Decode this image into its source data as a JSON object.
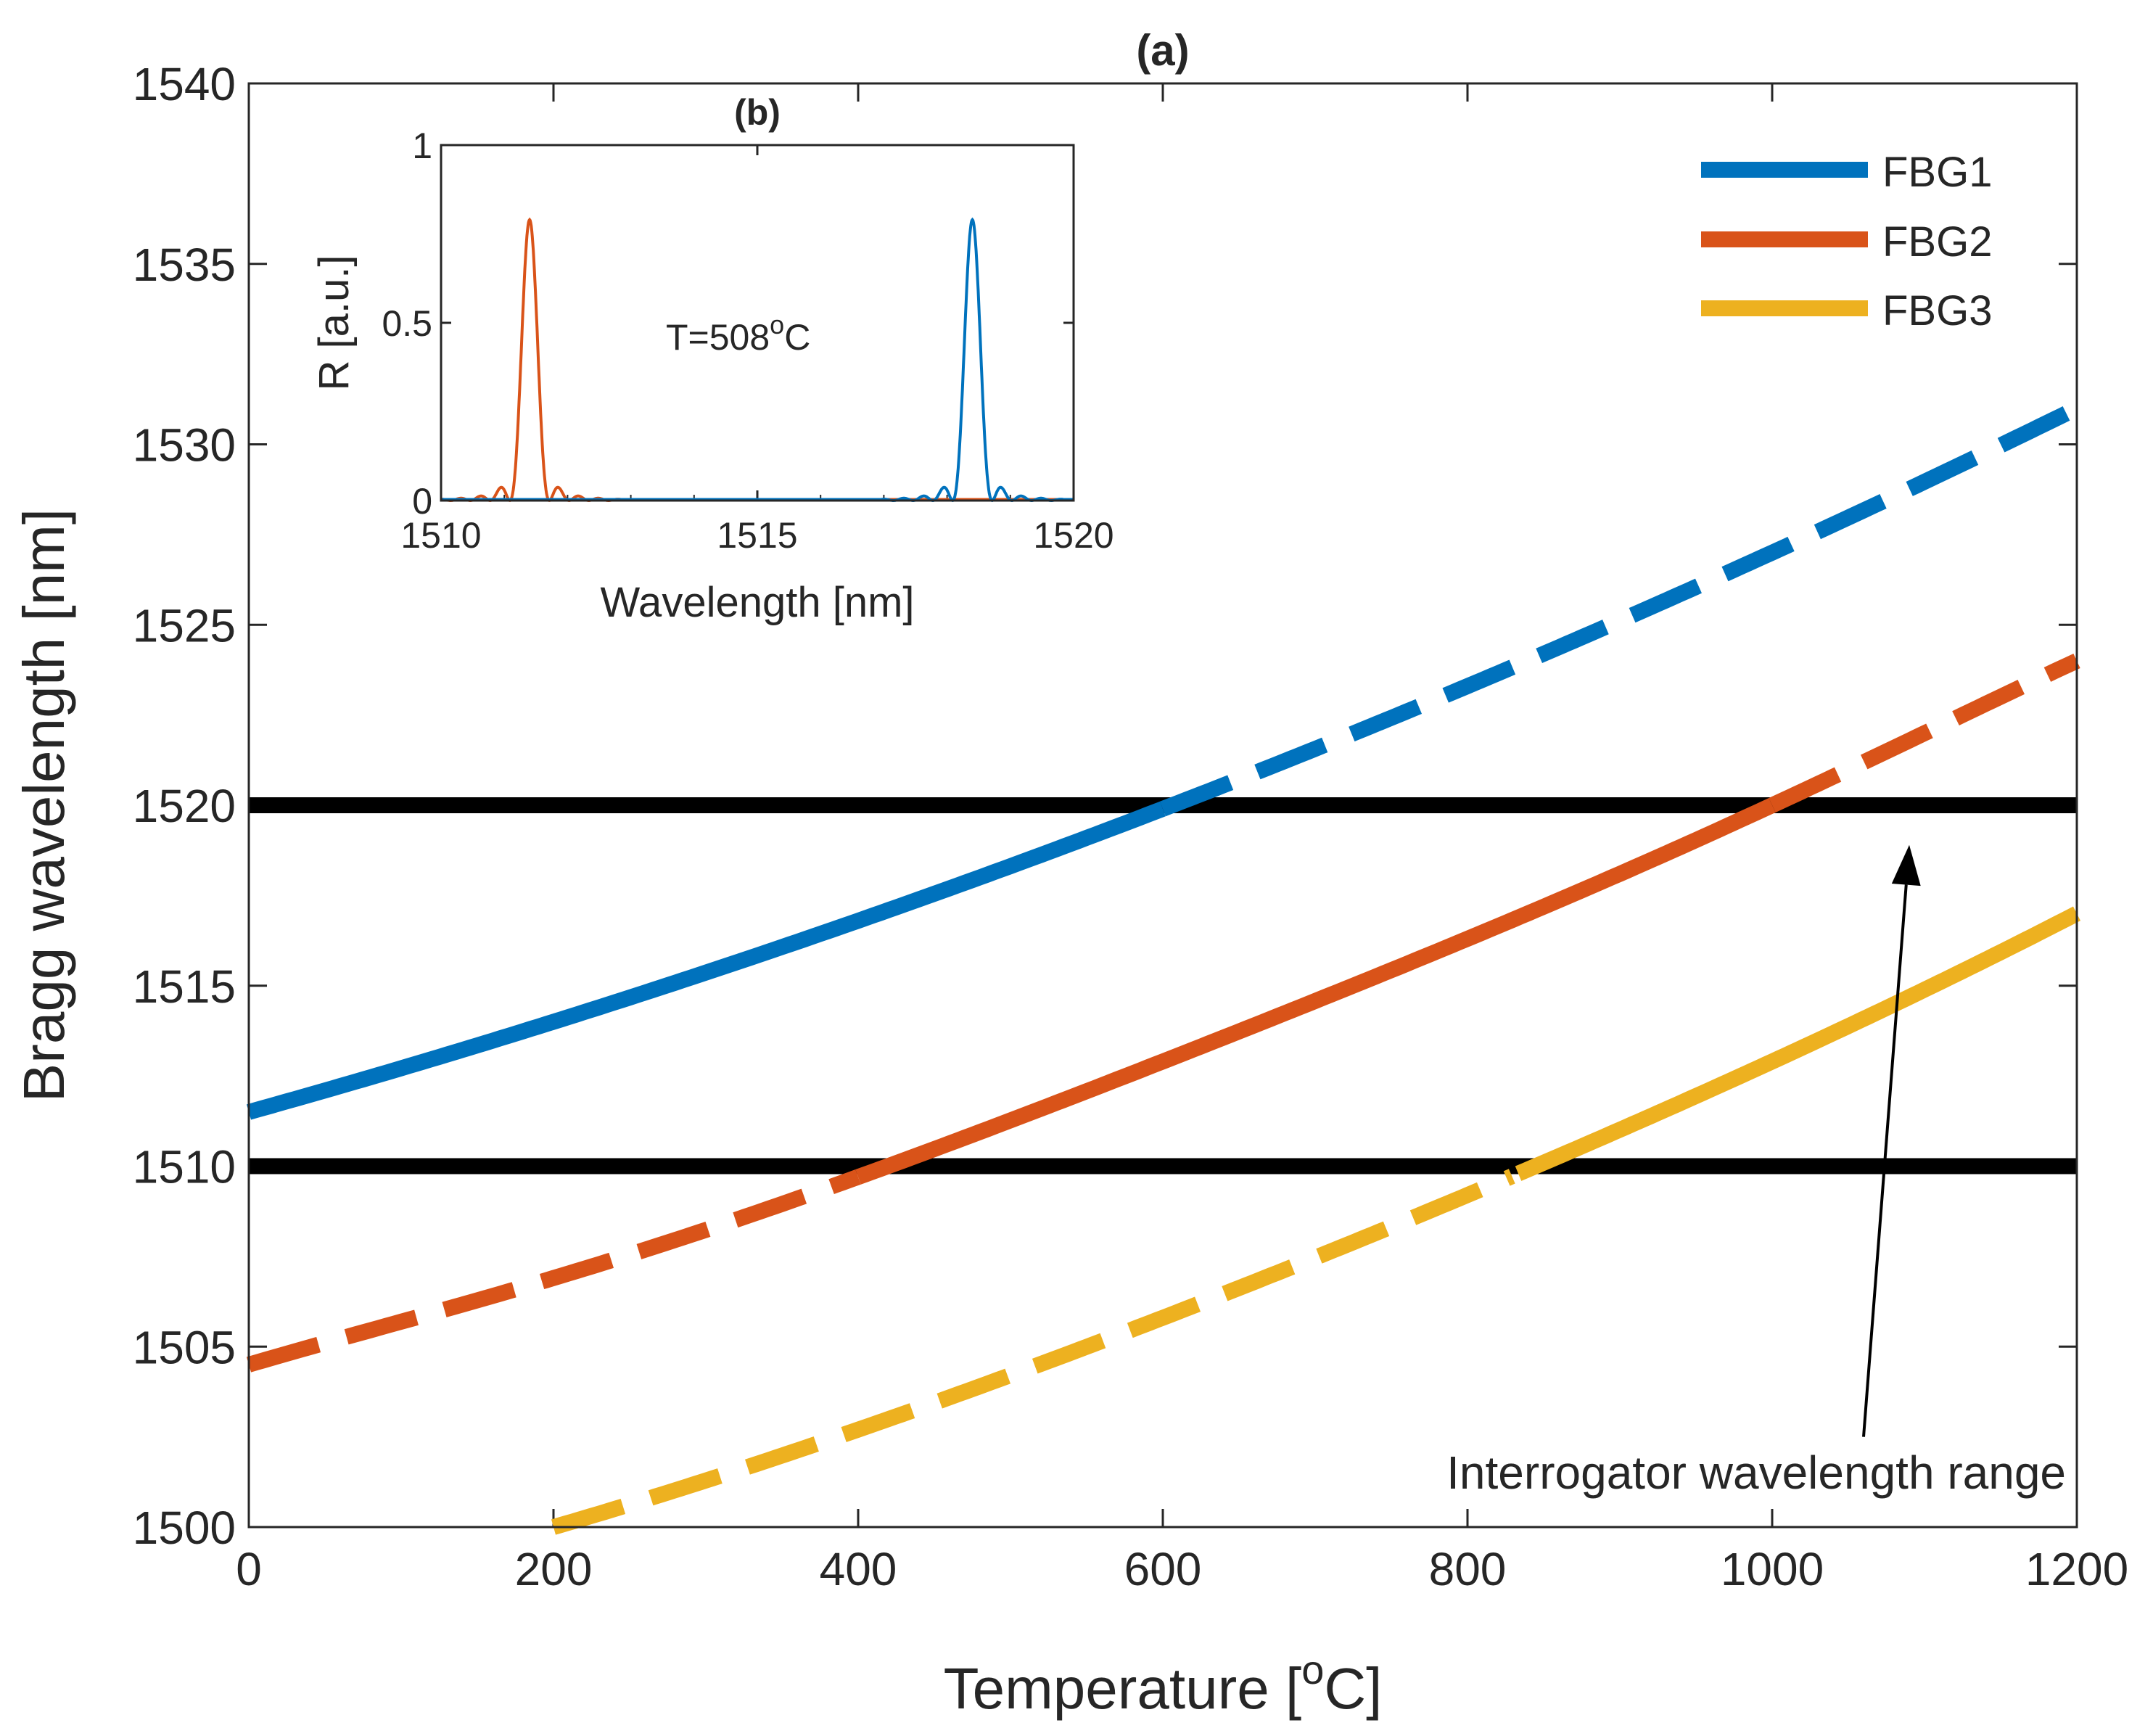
{
  "chart_data": [
    {
      "panel": "main",
      "type": "line",
      "title": "(a)",
      "xlabel": "Temperature [",
      "xlabel_sup": "o",
      "xlabel_end": "C]",
      "ylabel": "Bragg wavelength [nm]",
      "xlim": [
        0,
        1200
      ],
      "ylim": [
        1500,
        1540
      ],
      "xticks": [
        "0",
        "200",
        "400",
        "600",
        "800",
        "1000",
        "1200"
      ],
      "yticks": [
        "1500",
        "1505",
        "1510",
        "1515",
        "1520",
        "1525",
        "1530",
        "1535",
        "1540"
      ],
      "legend_position": "top-right",
      "series": [
        {
          "name": "FBG1",
          "color": "#0072bd",
          "x": [
            0,
            200,
            400,
            600,
            800,
            1000,
            1200
          ],
          "y": [
            1511.5,
            1514.0,
            1516.8,
            1519.9,
            1523.3,
            1527.0,
            1531.0
          ],
          "solid_range": [
            0,
            600
          ]
        },
        {
          "name": "FBG2",
          "color": "#d95319",
          "x": [
            0,
            200,
            400,
            600,
            800,
            1000,
            1200
          ],
          "y": [
            1504.5,
            1506.9,
            1509.7,
            1512.9,
            1516.3,
            1520.0,
            1524.0
          ],
          "solid_range": [
            400,
            1000
          ]
        },
        {
          "name": "FBG3",
          "color": "#edb120",
          "x": [
            200,
            400,
            600,
            800,
            1000,
            1200
          ],
          "y": [
            1500.0,
            1502.7,
            1505.8,
            1509.2,
            1512.9,
            1517.0
          ],
          "solid_range": [
            830,
            1200
          ]
        }
      ],
      "reference_lines": [
        1510,
        1520
      ],
      "annotation": {
        "text": "Interrogator wavelength range",
        "arrow_from": [
          1060,
          1502.5
        ],
        "arrow_to": [
          1090,
          1518.9
        ]
      }
    },
    {
      "panel": "inset",
      "type": "line",
      "title": "(b)",
      "xlabel": "Wavelength [nm]",
      "ylabel": "R [a.u.]",
      "xlim": [
        1510,
        1520
      ],
      "ylim": [
        0,
        1
      ],
      "xticks": [
        "1510",
        "1515",
        "1520"
      ],
      "yticks": [
        "0",
        "0.5",
        "1"
      ],
      "annotation": {
        "text": "T=508",
        "sup": "o",
        "end": "C"
      },
      "series": [
        {
          "name": "FBG2",
          "color": "#d95319",
          "peak_center": 1511.4,
          "peak_value": 0.79
        },
        {
          "name": "FBG1",
          "color": "#0072bd",
          "peak_center": 1518.4,
          "peak_value": 0.79
        }
      ]
    }
  ]
}
